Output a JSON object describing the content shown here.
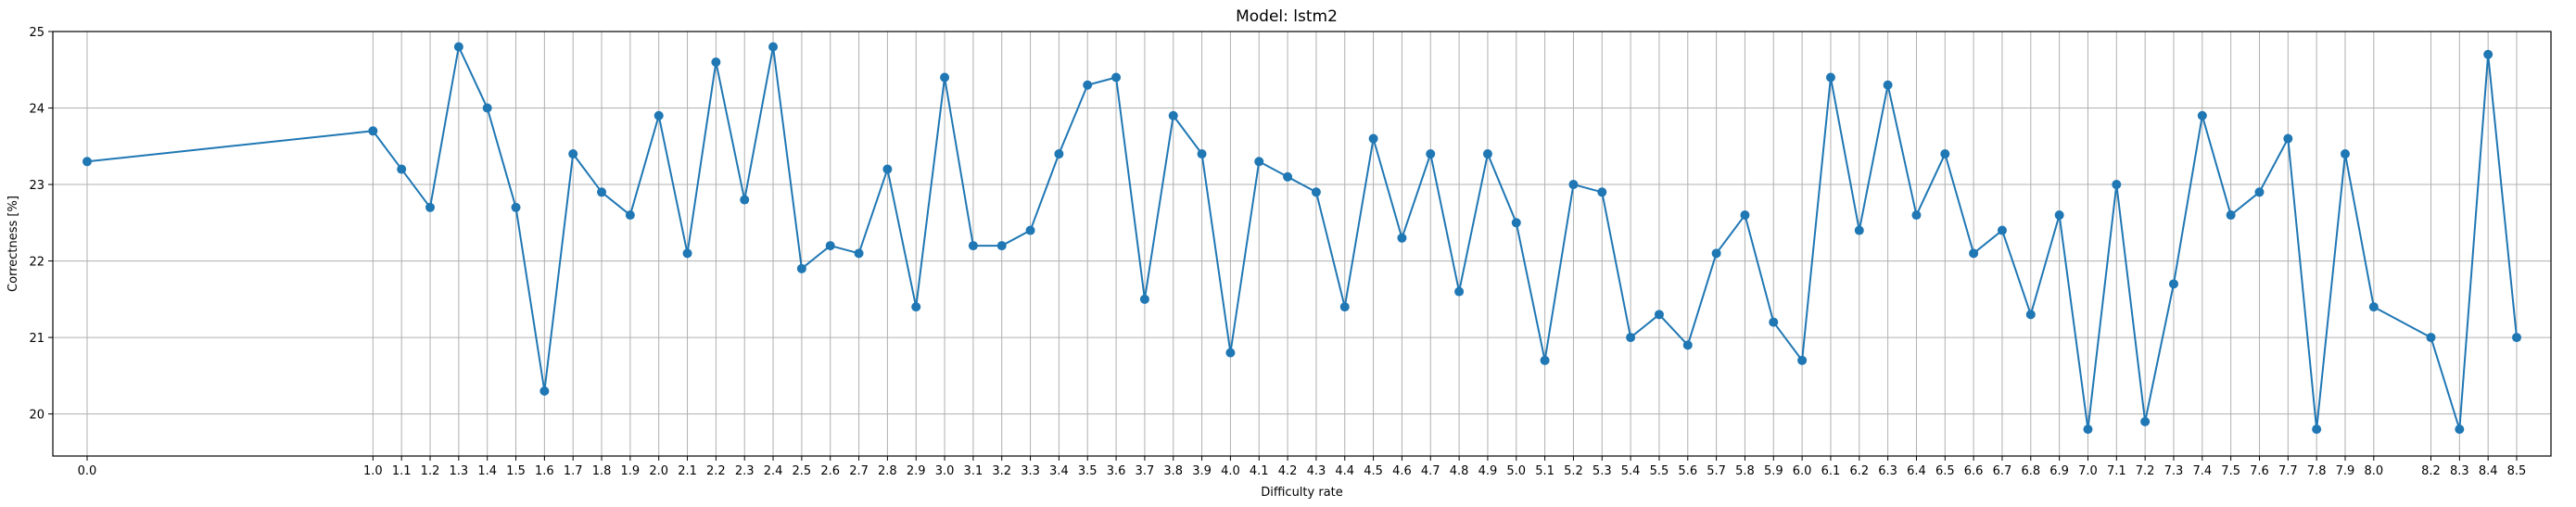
{
  "chart_data": {
    "type": "line",
    "title": "Model: lstm2",
    "xlabel": "Difficulty rate",
    "ylabel": "Correctness [%]",
    "x": [
      0.0,
      1.0,
      1.1,
      1.2,
      1.3,
      1.4,
      1.5,
      1.6,
      1.7,
      1.8,
      1.9,
      2.0,
      2.1,
      2.2,
      2.3,
      2.4,
      2.5,
      2.6,
      2.7,
      2.8,
      2.9,
      3.0,
      3.1,
      3.2,
      3.3,
      3.4,
      3.5,
      3.6,
      3.7,
      3.8,
      3.9,
      4.0,
      4.1,
      4.2,
      4.3,
      4.4,
      4.5,
      4.6,
      4.7,
      4.8,
      4.9,
      5.0,
      5.1,
      5.2,
      5.3,
      5.4,
      5.5,
      5.6,
      5.7,
      5.8,
      5.9,
      6.0,
      6.1,
      6.2,
      6.3,
      6.4,
      6.5,
      6.6,
      6.7,
      6.8,
      6.9,
      7.0,
      7.1,
      7.2,
      7.3,
      7.4,
      7.5,
      7.6,
      7.7,
      7.8,
      7.9,
      8.0,
      8.2,
      8.3,
      8.4,
      8.5
    ],
    "x_tick_labels": [
      "0.0",
      "1.0",
      "1.1",
      "1.2",
      "1.3",
      "1.4",
      "1.5",
      "1.6",
      "1.7",
      "1.8",
      "1.9",
      "2.0",
      "2.1",
      "2.2",
      "2.3",
      "2.4",
      "2.5",
      "2.6",
      "2.7",
      "2.8",
      "2.9",
      "3.0",
      "3.1",
      "3.2",
      "3.3",
      "3.4",
      "3.5",
      "3.6",
      "3.7",
      "3.8",
      "3.9",
      "4.0",
      "4.1",
      "4.2",
      "4.3",
      "4.4",
      "4.5",
      "4.6",
      "4.7",
      "4.8",
      "4.9",
      "5.0",
      "5.1",
      "5.2",
      "5.3",
      "5.4",
      "5.5",
      "5.6",
      "5.7",
      "5.8",
      "5.9",
      "6.0",
      "6.1",
      "6.2",
      "6.3",
      "6.4",
      "6.5",
      "6.6",
      "6.7",
      "6.8",
      "6.9",
      "7.0",
      "7.1",
      "7.2",
      "7.3",
      "7.4",
      "7.5",
      "7.6",
      "7.7",
      "7.8",
      "7.9",
      "8.0",
      "8.2",
      "8.3",
      "8.4",
      "8.5"
    ],
    "y_tick_labels": [
      "20",
      "21",
      "22",
      "23",
      "24",
      "25"
    ],
    "series": [
      {
        "values": [
          23.3,
          23.7,
          23.2,
          22.7,
          24.8,
          24.0,
          22.7,
          20.3,
          23.4,
          22.9,
          22.6,
          23.9,
          22.1,
          24.6,
          22.8,
          24.8,
          21.9,
          22.2,
          22.1,
          23.2,
          21.4,
          24.4,
          22.2,
          22.2,
          22.4,
          23.4,
          24.3,
          24.4,
          21.5,
          23.9,
          23.4,
          20.8,
          23.3,
          23.1,
          22.9,
          21.4,
          23.6,
          22.3,
          23.4,
          21.6,
          23.4,
          22.5,
          20.7,
          23.0,
          22.9,
          21.0,
          21.3,
          20.9,
          22.1,
          22.6,
          21.2,
          20.7,
          24.4,
          22.4,
          24.3,
          22.6,
          23.4,
          22.1,
          22.4,
          21.3,
          22.6,
          19.8,
          23.0,
          19.9,
          21.7,
          23.9,
          22.6,
          22.9,
          23.6,
          19.8,
          23.4,
          21.4,
          21.0,
          19.8,
          24.7,
          21.0
        ],
        "color": "#1f77b4"
      }
    ],
    "xlim": [
      -0.12,
      8.62
    ],
    "ylim": [
      19.45,
      25.0
    ],
    "y_ticks": [
      20,
      21,
      22,
      23,
      24,
      25
    ],
    "grid": true
  }
}
